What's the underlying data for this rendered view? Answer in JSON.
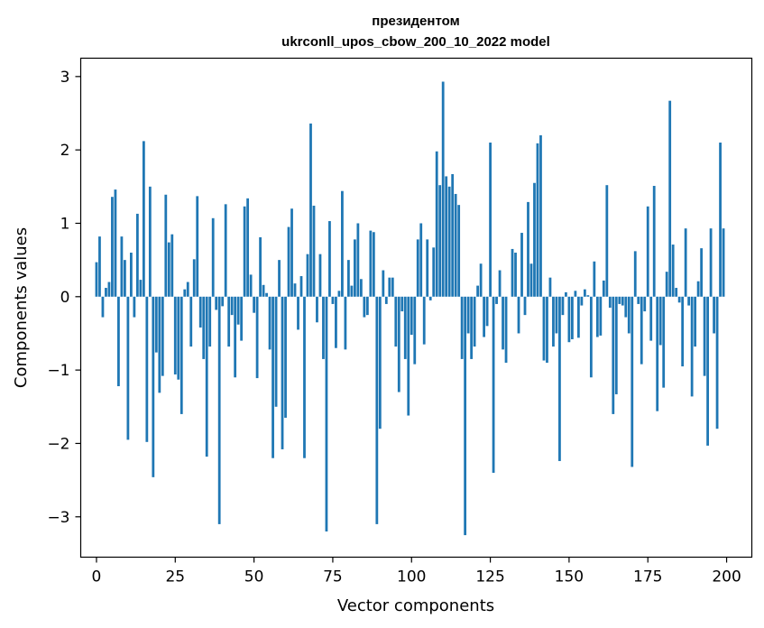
{
  "chart_data": {
    "type": "bar",
    "title_line1": "президентом",
    "title_line2": "ukrconll_upos_cbow_200_10_2022 model",
    "xlabel": "Vector components",
    "ylabel": "Components values",
    "xlim": [
      -5,
      208
    ],
    "ylim": [
      -3.55,
      3.25
    ],
    "x_ticks": [
      0,
      25,
      50,
      75,
      100,
      125,
      150,
      175,
      200
    ],
    "y_ticks": [
      -3,
      -2,
      -1,
      0,
      1,
      2,
      3
    ],
    "x_tick_labels": [
      "0",
      "25",
      "50",
      "75",
      "100",
      "125",
      "150",
      "175",
      "200"
    ],
    "y_tick_labels": [
      "−3",
      "−2",
      "−1",
      "0",
      "1",
      "2",
      "3"
    ],
    "bar_color": "#1f77b4",
    "values": [
      0.47,
      0.82,
      -0.28,
      0.12,
      0.2,
      1.36,
      1.46,
      -1.22,
      0.82,
      0.5,
      -1.95,
      0.6,
      -0.28,
      1.13,
      0.23,
      2.12,
      -1.98,
      1.5,
      -2.46,
      -0.76,
      -1.31,
      -1.08,
      1.39,
      0.74,
      0.85,
      -1.06,
      -1.13,
      -1.6,
      0.1,
      0.2,
      -0.68,
      0.51,
      1.37,
      -0.42,
      -0.85,
      -2.18,
      -0.68,
      1.07,
      -0.18,
      -3.1,
      -0.13,
      1.26,
      -0.68,
      -0.25,
      -1.1,
      -0.38,
      -0.6,
      1.23,
      1.34,
      0.3,
      -0.22,
      -1.11,
      0.81,
      0.16,
      0.05,
      -0.72,
      -2.2,
      -1.5,
      0.5,
      -2.08,
      -1.65,
      0.95,
      1.2,
      0.18,
      -0.45,
      0.28,
      -2.2,
      0.58,
      2.36,
      1.24,
      -0.35,
      0.58,
      -0.85,
      -3.2,
      1.03,
      -0.1,
      -0.7,
      0.08,
      1.44,
      -0.72,
      0.5,
      0.15,
      0.78,
      1.0,
      0.24,
      -0.28,
      -0.25,
      0.9,
      0.88,
      -3.1,
      -1.8,
      0.36,
      -0.1,
      0.26,
      0.26,
      -0.68,
      -1.3,
      -0.2,
      -0.85,
      -1.62,
      -0.52,
      -0.92,
      0.78,
      1.0,
      -0.65,
      0.78,
      -0.05,
      0.67,
      1.98,
      1.52,
      2.93,
      1.64,
      1.5,
      1.67,
      1.4,
      1.25,
      -0.85,
      -3.25,
      -0.5,
      -0.85,
      -0.68,
      0.15,
      0.45,
      -0.55,
      -0.4,
      2.1,
      -2.4,
      -0.1,
      0.36,
      -0.72,
      -0.9,
      0.0,
      0.65,
      0.6,
      -0.5,
      0.87,
      -0.25,
      1.29,
      0.45,
      1.55,
      2.09,
      2.2,
      -0.87,
      -0.9,
      0.26,
      -0.68,
      -0.5,
      -2.24,
      -0.25,
      0.06,
      -0.62,
      -0.58,
      0.08,
      -0.56,
      -0.12,
      0.1,
      0.02,
      -1.1,
      0.48,
      -0.55,
      -0.53,
      0.22,
      1.52,
      -0.15,
      -1.6,
      -1.33,
      -0.1,
      -0.12,
      -0.28,
      -0.5,
      -2.32,
      0.62,
      -0.1,
      -0.92,
      -0.2,
      1.23,
      -0.6,
      1.51,
      -1.56,
      -0.66,
      -1.24,
      0.34,
      2.67,
      0.71,
      0.12,
      -0.08,
      -0.95,
      0.93,
      -0.12,
      -1.36,
      -0.68,
      0.21,
      0.66,
      -1.08,
      -2.03,
      0.93,
      -0.5,
      -1.8,
      2.1,
      0.93
    ]
  }
}
